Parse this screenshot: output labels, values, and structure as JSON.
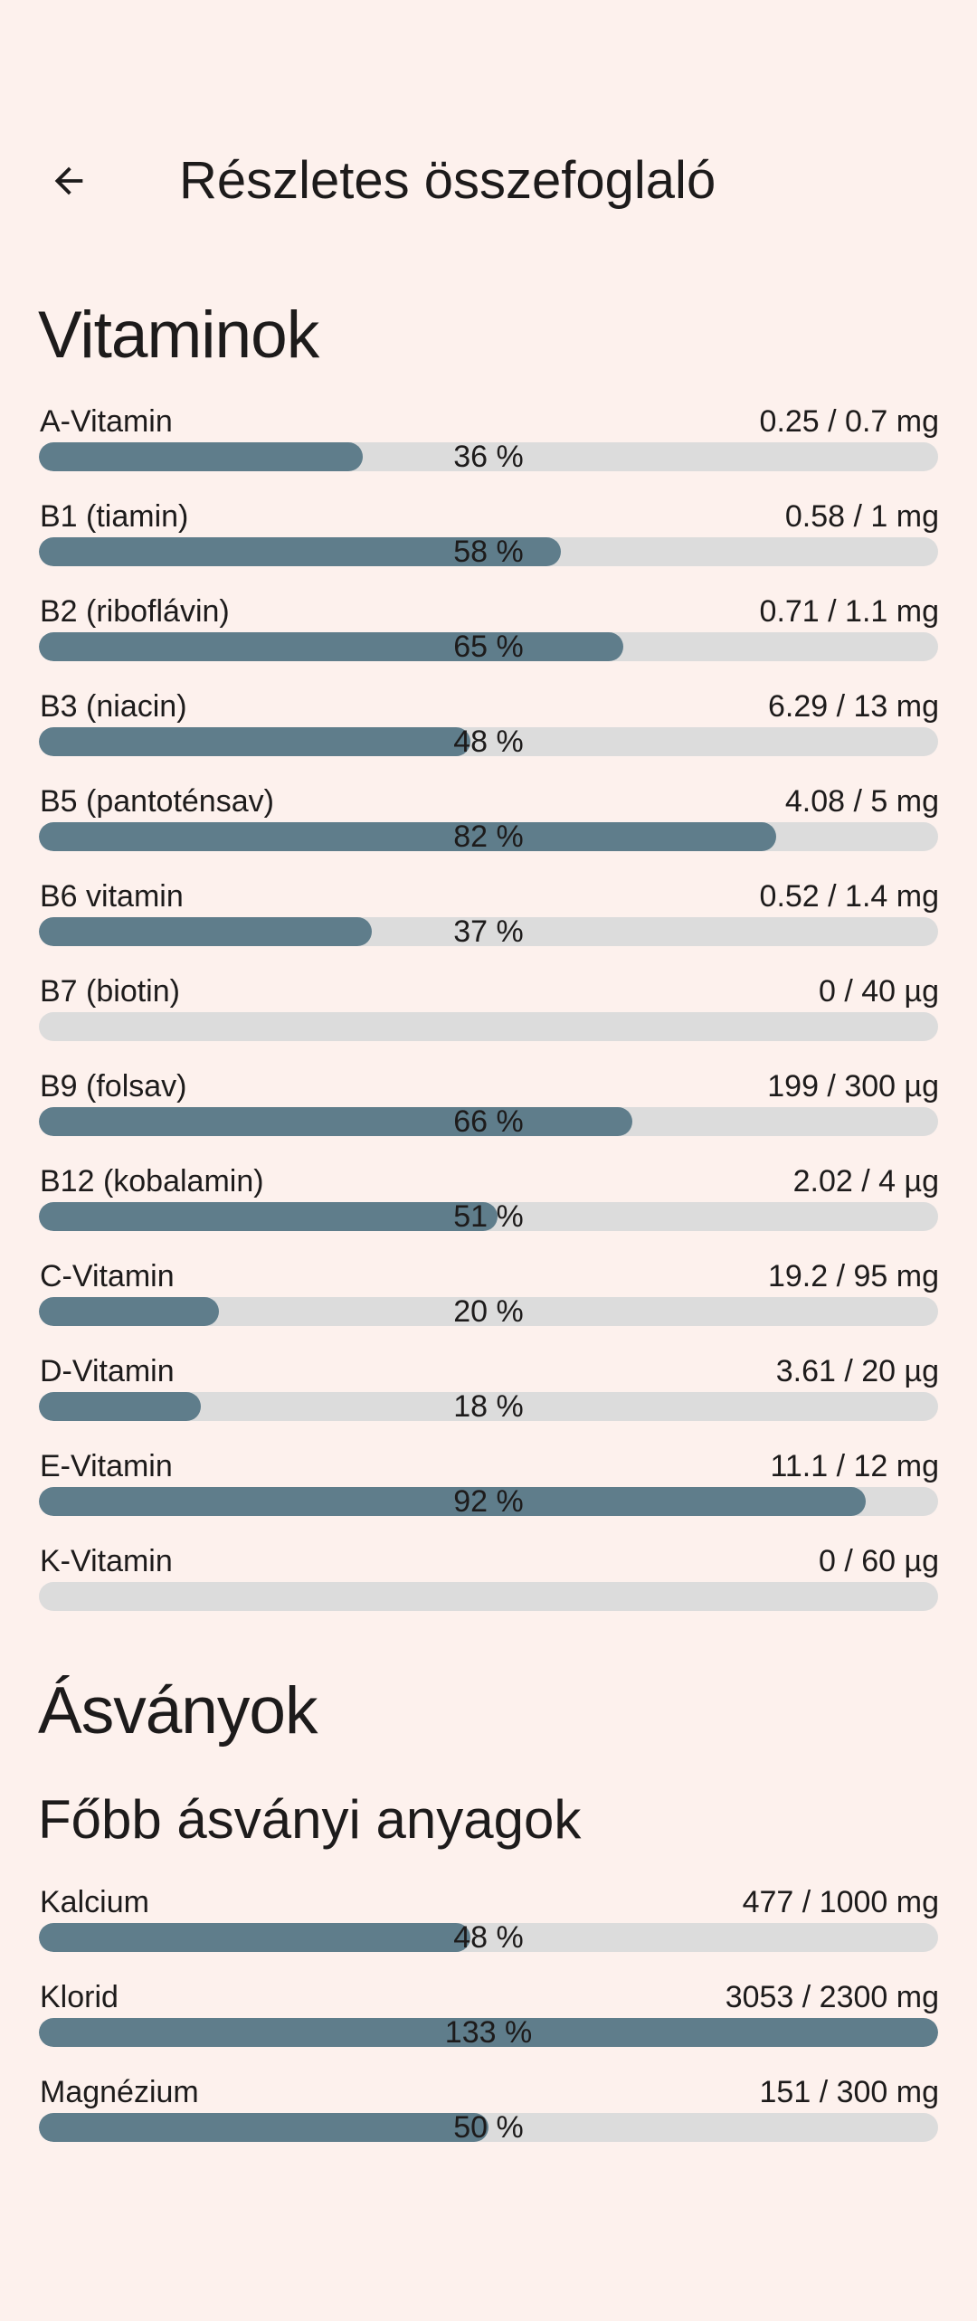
{
  "app_bar": {
    "title": "Részletes összefoglaló",
    "back_icon": "arrow-back"
  },
  "sections": {
    "vitamins": {
      "title": "Vitaminok",
      "rows": [
        {
          "label": "A-Vitamin",
          "value": "0.25 / 0.7 mg",
          "percent": 36,
          "percent_label": "36 %"
        },
        {
          "label": "B1 (tiamin)",
          "value": "0.58 / 1 mg",
          "percent": 58,
          "percent_label": "58 %"
        },
        {
          "label": "B2 (riboflávin)",
          "value": "0.71 / 1.1 mg",
          "percent": 65,
          "percent_label": "65 %"
        },
        {
          "label": "B3 (niacin)",
          "value": "6.29 / 13 mg",
          "percent": 48,
          "percent_label": "48 %"
        },
        {
          "label": "B5 (pantoténsav)",
          "value": "4.08 / 5 mg",
          "percent": 82,
          "percent_label": "82 %"
        },
        {
          "label": "B6 vitamin",
          "value": "0.52 / 1.4 mg",
          "percent": 37,
          "percent_label": "37 %"
        },
        {
          "label": "B7 (biotin)",
          "value": "0 / 40 µg",
          "percent": 0,
          "percent_label": ""
        },
        {
          "label": "B9 (folsav)",
          "value": "199 / 300 µg",
          "percent": 66,
          "percent_label": "66 %"
        },
        {
          "label": "B12 (kobalamin)",
          "value": "2.02 / 4 µg",
          "percent": 51,
          "percent_label": "51 %"
        },
        {
          "label": "C-Vitamin",
          "value": "19.2 / 95 mg",
          "percent": 20,
          "percent_label": "20 %"
        },
        {
          "label": "D-Vitamin",
          "value": "3.61 / 20 µg",
          "percent": 18,
          "percent_label": "18 %"
        },
        {
          "label": "E-Vitamin",
          "value": "11.1 / 12 mg",
          "percent": 92,
          "percent_label": "92 %"
        },
        {
          "label": "K-Vitamin",
          "value": "0 / 60 µg",
          "percent": 0,
          "percent_label": ""
        }
      ]
    },
    "minerals": {
      "title": "Ásványok",
      "subtitle": "Főbb ásványi anyagok",
      "rows": [
        {
          "label": "Kalcium",
          "value": "477 / 1000 mg",
          "percent": 48,
          "percent_label": "48 %"
        },
        {
          "label": "Klorid",
          "value": "3053 / 2300 mg",
          "percent": 133,
          "percent_label": "133 %"
        },
        {
          "label": "Magnézium",
          "value": "151 / 300 mg",
          "percent": 50,
          "percent_label": "50 %"
        }
      ]
    }
  },
  "colors": {
    "background": "#FDF1ED",
    "bar_fill": "#5F7D8B",
    "bar_track": "#DCDCDC",
    "text": "#1D1B1B"
  }
}
